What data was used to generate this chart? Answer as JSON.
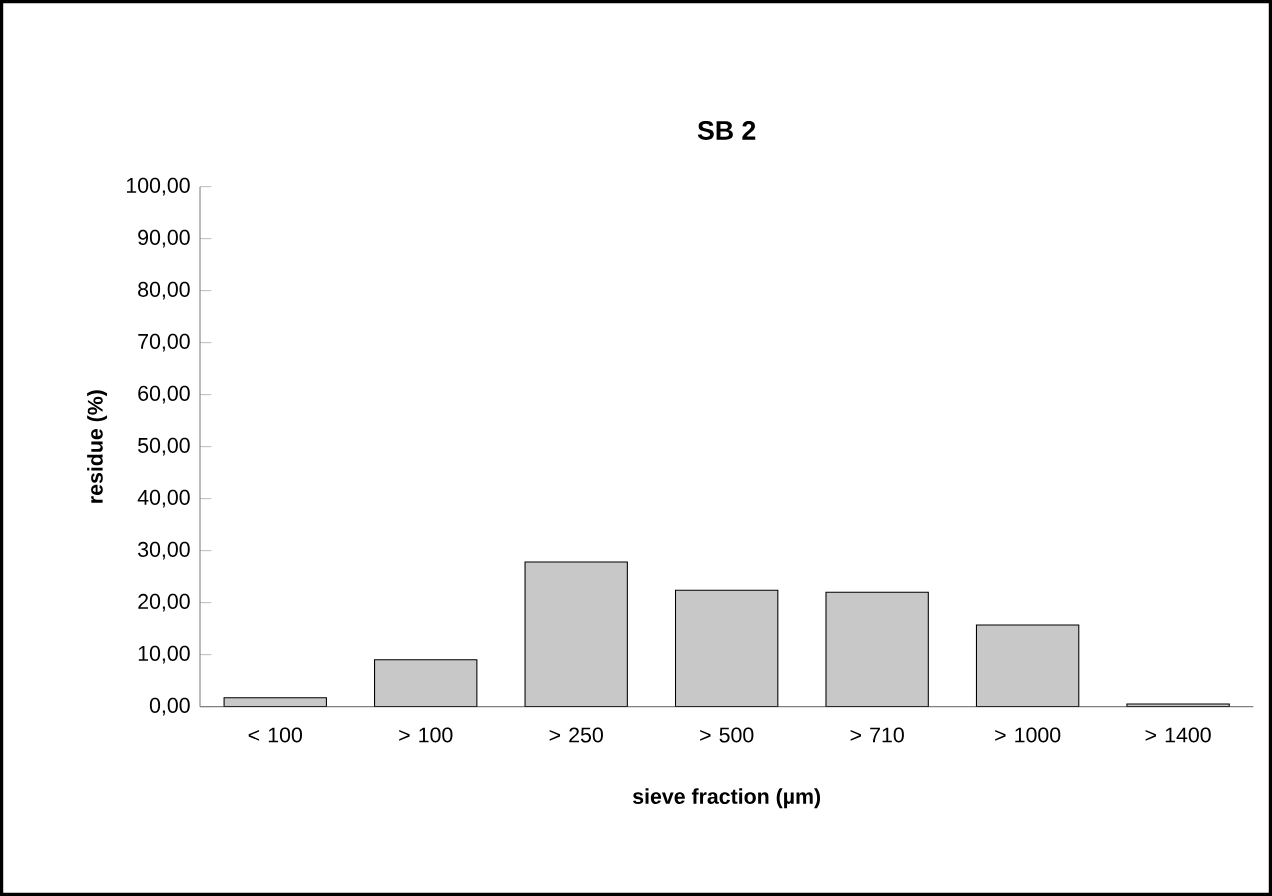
{
  "chart_data": {
    "type": "bar",
    "title": "SB 2",
    "xlabel": "sieve fraction (µm)",
    "ylabel": "residue (%)",
    "categories": [
      "< 100",
      "> 100",
      "> 250",
      "> 500",
      "> 710",
      "> 1000",
      "> 1400"
    ],
    "values": [
      1.7,
      9.0,
      27.8,
      22.4,
      22.0,
      15.7,
      0.5
    ],
    "color": "#c8c8c8",
    "ylim": [
      0,
      100
    ],
    "yticks": [
      {
        "value": 0,
        "label": "0,00"
      },
      {
        "value": 10,
        "label": "10,00"
      },
      {
        "value": 20,
        "label": "20,00"
      },
      {
        "value": 30,
        "label": "30,00"
      },
      {
        "value": 40,
        "label": "40,00"
      },
      {
        "value": 50,
        "label": "50,00"
      },
      {
        "value": 60,
        "label": "60,00"
      },
      {
        "value": 70,
        "label": "70,00"
      },
      {
        "value": 80,
        "label": "80,00"
      },
      {
        "value": 90,
        "label": "90,00"
      },
      {
        "value": 100,
        "label": "100,00"
      }
    ],
    "grid": false
  }
}
